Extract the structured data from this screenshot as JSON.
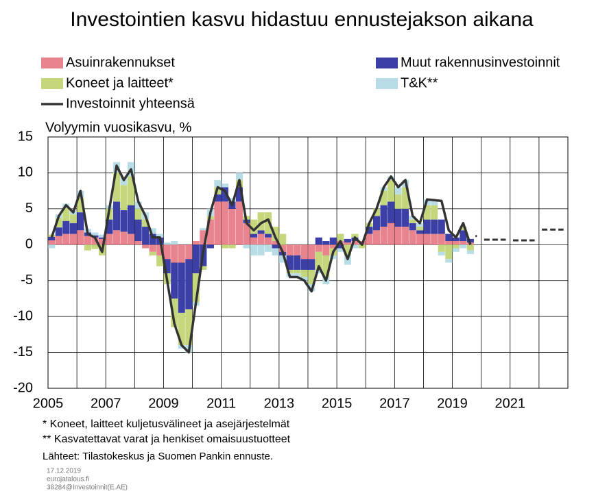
{
  "chart_data": {
    "type": "stacked_bar_line",
    "title": "Investointien kasvu hidastuu ennustejakson aikana",
    "ylabel": "Volyymin vuosikasvu, %",
    "x": [
      2005,
      2005.25,
      2005.5,
      2005.75,
      2006,
      2006.25,
      2006.5,
      2006.75,
      2007,
      2007.25,
      2007.5,
      2007.75,
      2008,
      2008.25,
      2008.5,
      2008.75,
      2009,
      2009.25,
      2009.5,
      2009.75,
      2010,
      2010.25,
      2010.5,
      2010.75,
      2011,
      2011.25,
      2011.5,
      2011.75,
      2012,
      2012.25,
      2012.5,
      2012.75,
      2013,
      2013.25,
      2013.5,
      2013.75,
      2014,
      2014.25,
      2014.5,
      2014.75,
      2015,
      2015.25,
      2015.5,
      2015.75,
      2016,
      2016.25,
      2016.5,
      2016.75,
      2017,
      2017.25,
      2017.5,
      2017.75,
      2018,
      2018.25,
      2018.5,
      2018.75,
      2019,
      2019.25,
      2019.5
    ],
    "series": [
      {
        "name": "Asuinrakennukset",
        "color": "#e8848d",
        "values": [
          0.6,
          1.2,
          1.5,
          1.5,
          2,
          1.2,
          1,
          0.8,
          1.5,
          2,
          1.8,
          1.5,
          0.5,
          -0.5,
          -1,
          -1.5,
          -2,
          -2.5,
          -2.5,
          -2,
          0.5,
          2,
          3.5,
          6,
          6,
          5,
          6,
          3,
          1,
          1.5,
          1,
          0.5,
          -1,
          -1.5,
          -1.5,
          -2,
          -2,
          -1,
          -1.5,
          -0.5,
          0.5,
          0.3,
          0.5,
          0.5,
          1.5,
          2,
          2.5,
          3,
          2.5,
          2.5,
          2,
          1.5,
          1.5,
          1.5,
          1.5,
          0.5,
          0.5,
          0.5,
          0.3
        ]
      },
      {
        "name": "Muut rakennusinvestoinnit",
        "color": "#3b3fa6",
        "values": [
          0.5,
          1.2,
          1.8,
          1.5,
          2.5,
          0.5,
          0.3,
          0.2,
          2,
          4,
          3,
          4,
          3,
          2.5,
          1.5,
          1,
          -2,
          -5,
          -7,
          -7,
          -4,
          -3,
          -0.5,
          1,
          2,
          1,
          2,
          0.5,
          0.5,
          0.5,
          0.5,
          -0.5,
          -0.5,
          -2,
          -2,
          -1.5,
          -1.5,
          1,
          0.5,
          1,
          -0.5,
          0.5,
          0.5,
          0,
          1,
          2,
          3,
          3,
          2.5,
          2.5,
          1,
          0.5,
          2,
          2,
          2,
          1,
          0.5,
          1.5,
          0.5
        ]
      },
      {
        "name": "Koneet ja laitteet*",
        "color": "#c4d77c",
        "values": [
          0.3,
          1.3,
          1.8,
          1.2,
          2,
          -0.8,
          -0.6,
          -1.5,
          1.5,
          4,
          3.5,
          4,
          1.5,
          1,
          -0.5,
          -1.5,
          -1.5,
          -4,
          -4.5,
          -5,
          -4,
          -0.5,
          0.5,
          1,
          -0.5,
          -0.5,
          1,
          0.5,
          2,
          2.5,
          3,
          2,
          1.5,
          -0.5,
          -0.5,
          -1,
          -2,
          -2.5,
          -3,
          -1,
          1,
          -1.5,
          0.5,
          -0.5,
          0.5,
          1,
          2,
          3,
          2,
          3,
          0.5,
          0.5,
          2,
          2,
          -1,
          -2,
          -0.5,
          0.5,
          -0.8
        ]
      },
      {
        "name": "T&K**",
        "color": "#b9dde6",
        "values": [
          -0.5,
          0.5,
          0.6,
          0.5,
          1,
          0.5,
          0.4,
          0.4,
          0.5,
          1.5,
          1.2,
          2,
          1,
          1,
          0.8,
          0.5,
          0.3,
          0.5,
          -0.5,
          -1,
          -0.5,
          0.3,
          1,
          1,
          0.5,
          0.5,
          1,
          -0.5,
          -1.5,
          -1.5,
          -1,
          -1,
          -1,
          -0.5,
          -0.5,
          -0.5,
          -1,
          -0.5,
          -1,
          -0.5,
          -0.5,
          -1.3,
          -0.5,
          0,
          0,
          0,
          0.5,
          0.5,
          1,
          1,
          0.5,
          0.5,
          0.8,
          0.7,
          -0.5,
          -0.5,
          -0.5,
          -0.5,
          -0.5
        ]
      }
    ],
    "line": {
      "name": "Investoinnit yhteensä",
      "color": "#333333",
      "values": [
        1,
        4,
        5.5,
        4.5,
        7.5,
        1.5,
        1,
        -1,
        5,
        11,
        9,
        10.5,
        6,
        4,
        1,
        1,
        -5,
        -11,
        -14,
        -15,
        -8,
        -1,
        4.5,
        8,
        7.5,
        5.5,
        9,
        3,
        2,
        3,
        3.5,
        1,
        -1,
        -4.5,
        -4.5,
        -5,
        -6.5,
        -3,
        -5,
        -1,
        0.5,
        -2,
        1,
        0,
        3,
        5,
        8,
        9.5,
        8,
        9,
        4,
        3,
        6.3,
        6.2,
        6.1,
        2,
        1,
        3,
        0
      ]
    },
    "forecast": {
      "x": [
        2019,
        2020,
        2021,
        2022
      ],
      "values": [
        1.2,
        0.7,
        0.6,
        2.1
      ]
    },
    "xlim": [
      2005,
      2023
    ],
    "xticks": [
      2005,
      2007,
      2009,
      2011,
      2013,
      2015,
      2017,
      2019,
      2021
    ],
    "x_grid_lines": [
      2005,
      2006,
      2007,
      2008,
      2009,
      2010,
      2011,
      2012,
      2013,
      2014,
      2015,
      2016,
      2017,
      2018,
      2019,
      2020,
      2021,
      2022
    ],
    "ylim": [
      -20,
      15
    ],
    "yticks": [
      -20,
      -15,
      -10,
      -5,
      0,
      5,
      10,
      15
    ],
    "grid": true,
    "notes": [
      "* Koneet, laitteet kuljetusvälineet ja asejärjestelmät",
      "** Kasvatettavat varat ja henkiset omaisuustuotteet"
    ],
    "source": "Lähteet: Tilastokeskus ja Suomen Pankin ennuste.",
    "footer": [
      "17.12.2019",
      "eurojatalous.fi",
      "38284@Investoinnit(E.AE)"
    ]
  }
}
